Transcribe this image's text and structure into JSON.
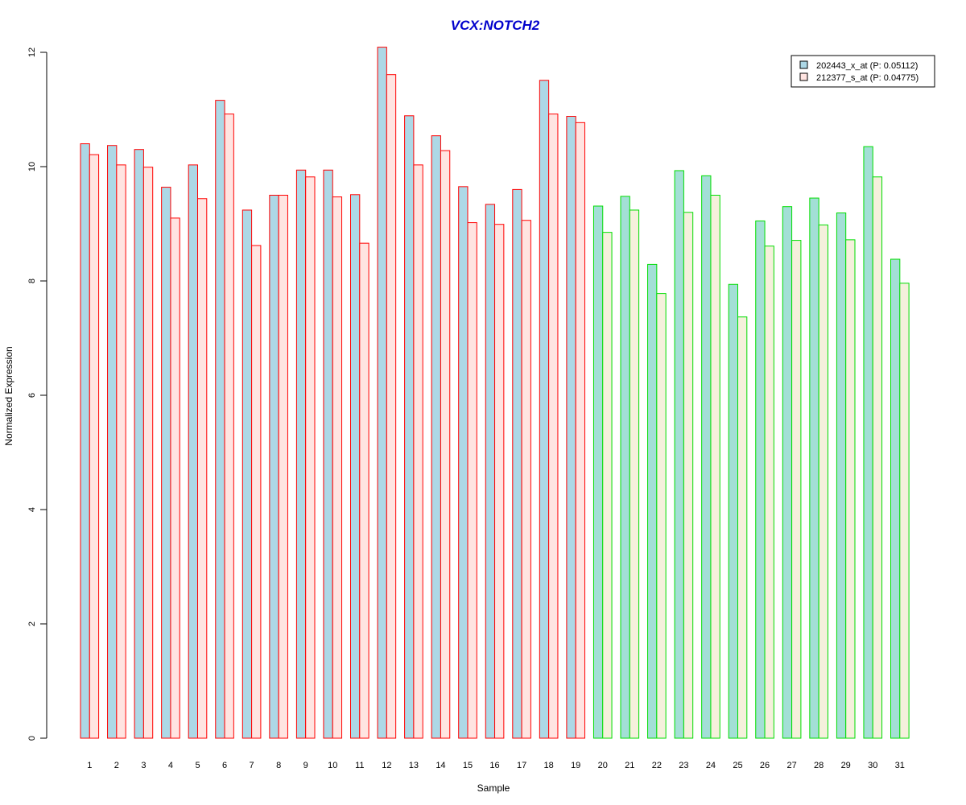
{
  "chart_data": {
    "type": "bar",
    "title": "VCX:NOTCH2",
    "xlabel": "Sample",
    "ylabel": "Normalized Expression",
    "ylim": [
      0,
      12
    ],
    "yticks": [
      0,
      2,
      4,
      6,
      8,
      10,
      12
    ],
    "grid": false,
    "legend_position": "top-right",
    "categories": [
      "1",
      "2",
      "3",
      "4",
      "5",
      "6",
      "7",
      "8",
      "9",
      "10",
      "11",
      "12",
      "13",
      "14",
      "15",
      "16",
      "17",
      "18",
      "19",
      "20",
      "21",
      "22",
      "23",
      "24",
      "25",
      "26",
      "27",
      "28",
      "29",
      "30",
      "31"
    ],
    "group_border_colors": [
      "#ff0000",
      "#ff0000",
      "#ff0000",
      "#ff0000",
      "#ff0000",
      "#ff0000",
      "#ff0000",
      "#ff0000",
      "#ff0000",
      "#ff0000",
      "#ff0000",
      "#ff0000",
      "#ff0000",
      "#ff0000",
      "#ff0000",
      "#ff0000",
      "#ff0000",
      "#ff0000",
      "#ff0000",
      "#00dd00",
      "#00dd00",
      "#00dd00",
      "#00dd00",
      "#00dd00",
      "#00dd00",
      "#00dd00",
      "#00dd00",
      "#00dd00",
      "#00dd00",
      "#00dd00",
      "#00dd00"
    ],
    "series": [
      {
        "name": "202443_x_at (P: 0.05112)",
        "fill": "#add8e6",
        "values": [
          10.4,
          10.37,
          10.3,
          9.64,
          10.03,
          11.16,
          9.24,
          9.5,
          9.94,
          9.94,
          9.51,
          12.09,
          10.89,
          10.54,
          9.65,
          9.34,
          9.6,
          11.51,
          10.88,
          9.31,
          9.48,
          8.29,
          9.93,
          9.84,
          7.94,
          9.05,
          9.3,
          9.45,
          9.19,
          10.35,
          8.38
        ]
      },
      {
        "name": "212377_s_at (P: 0.04775)",
        "fill": "#ffe4e1",
        "values": [
          10.21,
          10.03,
          9.99,
          9.1,
          9.44,
          10.92,
          8.62,
          9.5,
          9.82,
          9.47,
          8.66,
          11.61,
          10.03,
          10.28,
          9.02,
          8.99,
          9.06,
          10.92,
          10.77,
          8.85,
          9.24,
          7.78,
          9.2,
          9.5,
          7.37,
          8.61,
          8.71,
          8.98,
          8.72,
          9.82,
          7.96
        ]
      }
    ],
    "series_fill_green_group": [
      "#a3dfd6",
      "#f5f0dc"
    ]
  }
}
